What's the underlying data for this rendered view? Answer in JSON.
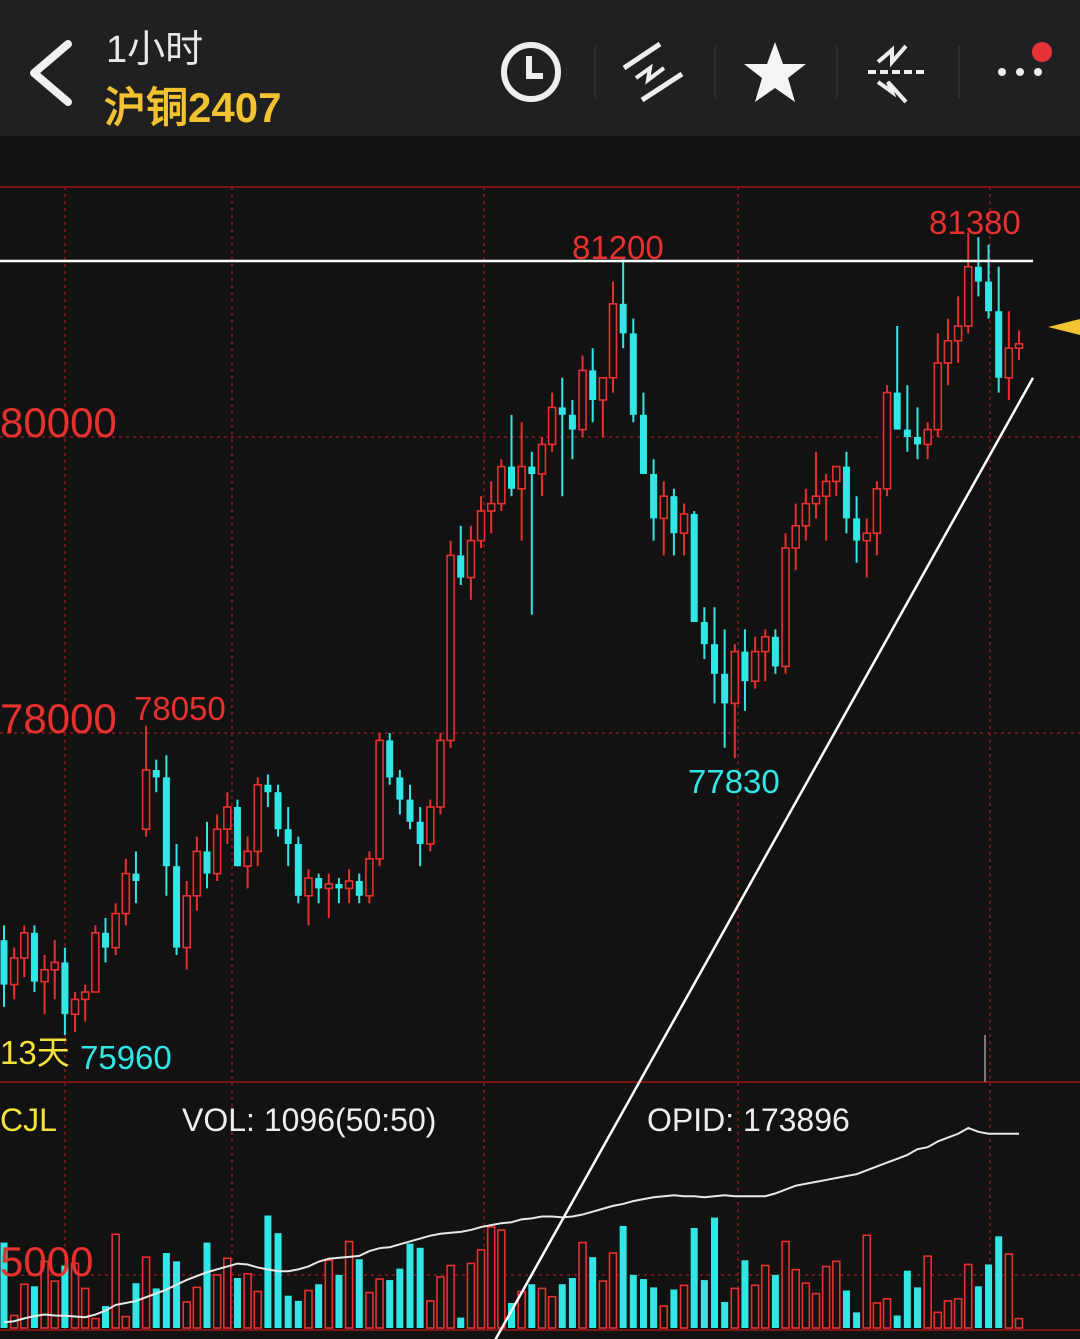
{
  "header": {
    "period": "1小时",
    "symbol": "沪铜2407",
    "icons": [
      "back-arrow-icon",
      "clock-icon",
      "draw-line-icon",
      "star-icon",
      "indicator-icon",
      "more-icon"
    ],
    "notification_dot_color": "#e8323a"
  },
  "chart_data": {
    "type": "candlestick",
    "colors": {
      "up": "#e8302e",
      "down": "#33e6e6",
      "grid": "#8a1a1a",
      "annotation": "#ffffff"
    },
    "y_axis": {
      "ticks": [
        80000,
        78000
      ],
      "tick_labels": [
        "80000",
        "78000"
      ]
    },
    "annotations": {
      "high_left": "81200",
      "high_right": "81380",
      "local_high": "78050",
      "local_low": "77830",
      "period_low": "75960",
      "days_label": "13天",
      "horizontal_line_price": 81200,
      "trendline_from_price": 73800,
      "trendline_to_price": 80400
    },
    "candles": [
      [
        76600,
        76700,
        76150,
        76300
      ],
      [
        76300,
        76550,
        76200,
        76480
      ],
      [
        76480,
        76700,
        76350,
        76650
      ],
      [
        76650,
        76700,
        76250,
        76320
      ],
      [
        76320,
        76500,
        76100,
        76400
      ],
      [
        76400,
        76600,
        76200,
        76450
      ],
      [
        76450,
        76550,
        75960,
        76100
      ],
      [
        76100,
        76250,
        75980,
        76200
      ],
      [
        76200,
        76300,
        76050,
        76250
      ],
      [
        76250,
        76700,
        76250,
        76650
      ],
      [
        76650,
        76750,
        76450,
        76550
      ],
      [
        76550,
        76850,
        76500,
        76780
      ],
      [
        76780,
        77150,
        76700,
        77050
      ],
      [
        77050,
        77200,
        76850,
        77000
      ],
      [
        77350,
        78050,
        77300,
        77750
      ],
      [
        77750,
        77820,
        77600,
        77700
      ],
      [
        77700,
        77850,
        76900,
        77100
      ],
      [
        77100,
        77250,
        76500,
        76550
      ],
      [
        76550,
        77000,
        76400,
        76900
      ],
      [
        76900,
        77300,
        76800,
        77200
      ],
      [
        77200,
        77400,
        76950,
        77050
      ],
      [
        77050,
        77450,
        77000,
        77350
      ],
      [
        77350,
        77600,
        77250,
        77500
      ],
      [
        77500,
        77550,
        77100,
        77100
      ],
      [
        77100,
        77300,
        76950,
        77200
      ],
      [
        77200,
        77700,
        77100,
        77650
      ],
      [
        77650,
        77720,
        77500,
        77600
      ],
      [
        77600,
        77650,
        77300,
        77350
      ],
      [
        77350,
        77500,
        77100,
        77250
      ],
      [
        77250,
        77300,
        76850,
        76900
      ],
      [
        76900,
        77080,
        76700,
        77020
      ],
      [
        77020,
        77050,
        76850,
        76950
      ],
      [
        76950,
        77050,
        76750,
        76980
      ],
      [
        76980,
        77020,
        76850,
        76950
      ],
      [
        76950,
        77080,
        76850,
        77000
      ],
      [
        77000,
        77050,
        76850,
        76900
      ],
      [
        76900,
        77200,
        76850,
        77150
      ],
      [
        77150,
        78000,
        77100,
        77950
      ],
      [
        77950,
        78000,
        77650,
        77700
      ],
      [
        77700,
        77750,
        77450,
        77550
      ],
      [
        77550,
        77650,
        77350,
        77400
      ],
      [
        77400,
        77500,
        77100,
        77250
      ],
      [
        77250,
        77550,
        77200,
        77500
      ],
      [
        77500,
        78000,
        77450,
        77950
      ],
      [
        77950,
        79300,
        77900,
        79200
      ],
      [
        79200,
        79400,
        79000,
        79050
      ],
      [
        79050,
        79400,
        78900,
        79300
      ],
      [
        79300,
        79600,
        79250,
        79500
      ],
      [
        79500,
        79700,
        79350,
        79550
      ],
      [
        79550,
        79850,
        79500,
        79800
      ],
      [
        79800,
        80150,
        79600,
        79650
      ],
      [
        79650,
        80100,
        79300,
        79800
      ],
      [
        79800,
        79900,
        78800,
        79750
      ],
      [
        79750,
        80000,
        79600,
        79950
      ],
      [
        79950,
        80300,
        79900,
        80200
      ],
      [
        80200,
        80400,
        79600,
        80150
      ],
      [
        80150,
        80250,
        79850,
        80050
      ],
      [
        80050,
        80550,
        80000,
        80450
      ],
      [
        80450,
        80600,
        80100,
        80250
      ],
      [
        80250,
        80400,
        80000,
        80400
      ],
      [
        80400,
        81050,
        80300,
        80900
      ],
      [
        80900,
        81200,
        80600,
        80700
      ],
      [
        80700,
        80800,
        80100,
        80150
      ],
      [
        80150,
        80300,
        79800,
        79750
      ],
      [
        79750,
        79850,
        79300,
        79450
      ],
      [
        79450,
        79700,
        79200,
        79600
      ],
      [
        79600,
        79650,
        79200,
        79350
      ],
      [
        79350,
        79550,
        79200,
        79480
      ],
      [
        79480,
        79500,
        78800,
        78750
      ],
      [
        78750,
        78850,
        78500,
        78600
      ],
      [
        78600,
        78850,
        78200,
        78400
      ],
      [
        78400,
        78700,
        77900,
        78200
      ],
      [
        78200,
        78600,
        77830,
        78550
      ],
      [
        78550,
        78700,
        78150,
        78350
      ],
      [
        78350,
        78650,
        78300,
        78550
      ],
      [
        78550,
        78700,
        78350,
        78650
      ],
      [
        78650,
        78700,
        78400,
        78450
      ],
      [
        78450,
        79350,
        78400,
        79250
      ],
      [
        79250,
        79550,
        79100,
        79400
      ],
      [
        79400,
        79650,
        79300,
        79550
      ],
      [
        79550,
        79900,
        79450,
        79600
      ],
      [
        79600,
        79750,
        79300,
        79700
      ],
      [
        79700,
        79800,
        79600,
        79800
      ],
      [
        79800,
        79900,
        79350,
        79450
      ],
      [
        79450,
        79600,
        79150,
        79300
      ],
      [
        79300,
        79450,
        79050,
        79350
      ],
      [
        79350,
        79700,
        79200,
        79650
      ],
      [
        79650,
        80350,
        79600,
        80300
      ],
      [
        80300,
        80750,
        80100,
        80050
      ],
      [
        80050,
        80350,
        79900,
        80000
      ],
      [
        80000,
        80200,
        79850,
        79950
      ],
      [
        79950,
        80100,
        79850,
        80050
      ],
      [
        80050,
        80700,
        80000,
        80500
      ],
      [
        80500,
        80800,
        80350,
        80650
      ],
      [
        80650,
        80950,
        80500,
        80750
      ],
      [
        80750,
        81380,
        80700,
        81150
      ],
      [
        81150,
        81350,
        80950,
        81050
      ],
      [
        81050,
        81300,
        80800,
        80850
      ],
      [
        80850,
        81150,
        80300,
        80400
      ],
      [
        80400,
        80850,
        80250,
        80600
      ],
      [
        80600,
        80720,
        80520,
        80630
      ]
    ],
    "volume": {
      "label": "CJL",
      "vol_text": "VOL: 1096(50:50)",
      "opid_text": "OPID: 173896",
      "y_tick_labels": [
        "5000"
      ],
      "values": [
        8200,
        1200,
        4200,
        4000,
        6400,
        4500,
        6000,
        6200,
        3800,
        900,
        2100,
        9000,
        1100,
        4300,
        6800,
        3800,
        7200,
        6400,
        2500,
        3900,
        8200,
        5100,
        6700,
        4800,
        5200,
        3500,
        10800,
        9100,
        3100,
        2600,
        3600,
        4200,
        6500,
        5100,
        8300,
        6600,
        3400,
        4700,
        4600,
        5700,
        8100,
        7700,
        2600,
        4900,
        6000,
        1000,
        6200,
        7500,
        9700,
        9400,
        2400,
        3500,
        4200,
        3800,
        3000,
        4200,
        4800,
        8200,
        6800,
        4500,
        7200,
        9800,
        5100,
        4700,
        3900,
        2100,
        3700,
        4100,
        9600,
        4600,
        10600,
        2500,
        3800,
        6500,
        4100,
        6000,
        5100,
        8300,
        5600,
        4300,
        3300,
        5900,
        6400,
        3600,
        1500,
        8900,
        2400,
        2800,
        1200,
        5500,
        3900,
        6900,
        1500,
        2600,
        2800,
        6100,
        4000,
        6100,
        8800,
        7100,
        900
      ],
      "up_down": "follows candles",
      "opid_series": [
        300,
        350,
        500,
        620,
        700,
        650,
        640,
        600,
        560,
        700,
        900,
        1200,
        1300,
        1400,
        1600,
        1800,
        2000,
        2250,
        2500,
        2700,
        2900,
        3050,
        3200,
        3350,
        3300,
        3150,
        3050,
        2950,
        2950,
        3050,
        3200,
        3450,
        3600,
        3650,
        3700,
        3750,
        4000,
        4150,
        4200,
        4350,
        4500,
        4650,
        4800,
        4900,
        4950,
        5000,
        5100,
        5250,
        5350,
        5450,
        5500,
        5650,
        5700,
        5800,
        5800,
        5750,
        5800,
        5900,
        6050,
        6200,
        6350,
        6450,
        6600,
        6700,
        6800,
        6850,
        6900,
        6850,
        6850,
        6800,
        6850,
        6900,
        6850,
        6850,
        6850,
        6850,
        7000,
        7200,
        7400,
        7500,
        7600,
        7700,
        7800,
        7900,
        8000,
        8200,
        8400,
        8600,
        8800,
        9000,
        9300,
        9400,
        9700,
        9900,
        10100,
        10400,
        10200,
        10100,
        10100,
        10100,
        10100
      ]
    },
    "current_price_marker_color": "#f2c230"
  }
}
